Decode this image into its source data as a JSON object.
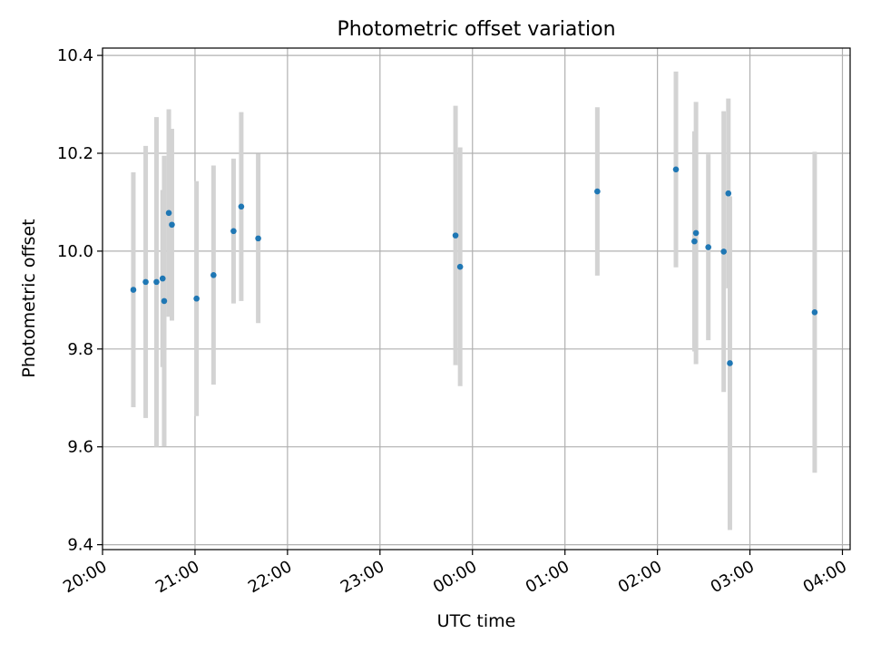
{
  "chart_data": {
    "type": "scatter",
    "title": "Photometric offset variation",
    "xlabel": "UTC time",
    "ylabel": "Photometric offset",
    "x_ticks": [
      "20:00",
      "21:00",
      "22:00",
      "23:00",
      "00:00",
      "01:00",
      "02:00",
      "03:00",
      "04:00"
    ],
    "xlim": [
      "20:00",
      "04:05"
    ],
    "ylim": [
      9.39,
      10.415
    ],
    "y_ticks": [
      9.4,
      9.6,
      9.8,
      10.0,
      10.2,
      10.4
    ],
    "grid": true,
    "legend": "none",
    "point_color": "#1f77b4",
    "errorbar_color": "#d3d3d3",
    "points": [
      {
        "t": "20:20",
        "y": 9.921,
        "err": 0.24
      },
      {
        "t": "20:28",
        "y": 9.937,
        "err": 0.278
      },
      {
        "t": "20:35",
        "y": 9.937,
        "err": 0.337
      },
      {
        "t": "20:39",
        "y": 9.944,
        "err": 0.181
      },
      {
        "t": "20:40",
        "y": 9.898,
        "err": 0.297
      },
      {
        "t": "20:43",
        "y": 10.078,
        "err": 0.212
      },
      {
        "t": "20:45",
        "y": 10.054,
        "err": 0.196
      },
      {
        "t": "21:01",
        "y": 9.903,
        "err": 0.24
      },
      {
        "t": "21:12",
        "y": 9.951,
        "err": 0.224
      },
      {
        "t": "21:25",
        "y": 10.041,
        "err": 0.148
      },
      {
        "t": "21:30",
        "y": 10.091,
        "err": 0.193
      },
      {
        "t": "21:41",
        "y": 10.026,
        "err": 0.173
      },
      {
        "t": "23:49",
        "y": 10.032,
        "err": 0.265
      },
      {
        "t": "23:52",
        "y": 9.968,
        "err": 0.244
      },
      {
        "t": "01:21",
        "y": 10.122,
        "err": 0.172
      },
      {
        "t": "02:12",
        "y": 10.167,
        "err": 0.2
      },
      {
        "t": "02:24",
        "y": 10.02,
        "err": 0.225
      },
      {
        "t": "02:25",
        "y": 10.037,
        "err": 0.268
      },
      {
        "t": "02:33",
        "y": 10.008,
        "err": 0.19
      },
      {
        "t": "02:43",
        "y": 9.999,
        "err": 0.287
      },
      {
        "t": "02:46",
        "y": 10.118,
        "err": 0.194
      },
      {
        "t": "02:47",
        "y": 9.771,
        "err": 0.341
      },
      {
        "t": "03:42",
        "y": 9.875,
        "err": 0.328
      }
    ]
  }
}
